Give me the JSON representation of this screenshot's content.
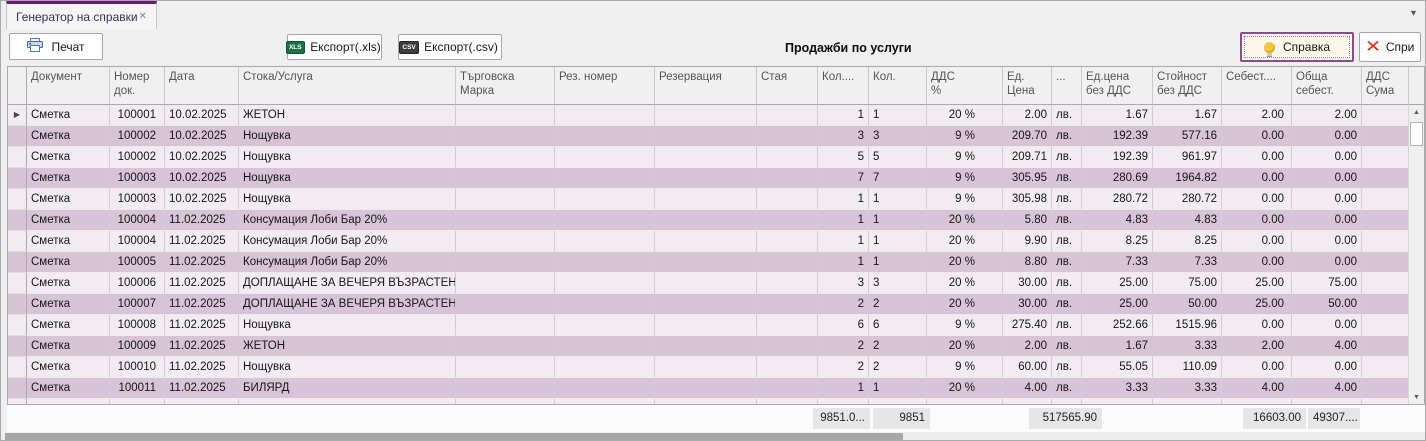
{
  "tab_bar": {
    "active_tab_label": "Генератор на справки",
    "close_glyph": "✕",
    "overflow_glyph": "▾"
  },
  "toolbar": {
    "print_label": "Печат",
    "export_xls_label": "Експорт(.xls)",
    "export_csv_label": "Експорт(.csv)",
    "xls_badge": "XLS",
    "csv_badge": "CSV",
    "report_title": "Продажби по услуги",
    "report_button_label": "Справка",
    "stop_button_label": "Спри",
    "stop_glyph": "✕"
  },
  "grid": {
    "row_indicator_glyph": "▶",
    "headers": {
      "doc": "Документ",
      "num": "Номер\nдок.",
      "date": "Дата",
      "item": "Стока/Услуга",
      "brand": "Търговска\nМарка",
      "res_num": "Рез. номер",
      "reservation": "Резервация",
      "room": "Стая",
      "qty1": "Кол....",
      "qty2": "Кол.",
      "vat_pct": "ДДС\n%",
      "price": "Ед. Цена",
      "curr": "...",
      "price_net": "Ед.цена\nбез ДДС",
      "amount_net": "Стойност\nбез ДДС",
      "cost": "Себест....",
      "total_cost": "Обща\nсебест.",
      "vat_sum": "ДДС Сума"
    },
    "rows": [
      {
        "doc": "Сметка",
        "num": "100001",
        "date": "10.02.2025",
        "item": "ЖЕТОН",
        "brand": "",
        "res_num": "",
        "reservation": "",
        "room": "",
        "qty1": "1",
        "qty2": "1",
        "vat_pct": "20 %",
        "price": "2.00",
        "curr": "лв.",
        "price_net": "1.67",
        "amount_net": "1.67",
        "cost": "2.00",
        "total_cost": "2.00",
        "vat_sum": ""
      },
      {
        "doc": "Сметка",
        "num": "100002",
        "date": "10.02.2025",
        "item": "Нощувка",
        "brand": "",
        "res_num": "",
        "reservation": "",
        "room": "",
        "qty1": "3",
        "qty2": "3",
        "vat_pct": "9 %",
        "price": "209.70",
        "curr": "лв.",
        "price_net": "192.39",
        "amount_net": "577.16",
        "cost": "0.00",
        "total_cost": "0.00",
        "vat_sum": ""
      },
      {
        "doc": "Сметка",
        "num": "100002",
        "date": "10.02.2025",
        "item": "Нощувка",
        "brand": "",
        "res_num": "",
        "reservation": "",
        "room": "",
        "qty1": "5",
        "qty2": "5",
        "vat_pct": "9 %",
        "price": "209.71",
        "curr": "лв.",
        "price_net": "192.39",
        "amount_net": "961.97",
        "cost": "0.00",
        "total_cost": "0.00",
        "vat_sum": ""
      },
      {
        "doc": "Сметка",
        "num": "100003",
        "date": "10.02.2025",
        "item": "Нощувка",
        "brand": "",
        "res_num": "",
        "reservation": "",
        "room": "",
        "qty1": "7",
        "qty2": "7",
        "vat_pct": "9 %",
        "price": "305.95",
        "curr": "лв.",
        "price_net": "280.69",
        "amount_net": "1964.82",
        "cost": "0.00",
        "total_cost": "0.00",
        "vat_sum": ""
      },
      {
        "doc": "Сметка",
        "num": "100003",
        "date": "10.02.2025",
        "item": "Нощувка",
        "brand": "",
        "res_num": "",
        "reservation": "",
        "room": "",
        "qty1": "1",
        "qty2": "1",
        "vat_pct": "9 %",
        "price": "305.98",
        "curr": "лв.",
        "price_net": "280.72",
        "amount_net": "280.72",
        "cost": "0.00",
        "total_cost": "0.00",
        "vat_sum": ""
      },
      {
        "doc": "Сметка",
        "num": "100004",
        "date": "11.02.2025",
        "item": "Консумация Лоби Бар 20%",
        "brand": "",
        "res_num": "",
        "reservation": "",
        "room": "",
        "qty1": "1",
        "qty2": "1",
        "vat_pct": "20 %",
        "price": "5.80",
        "curr": "лв.",
        "price_net": "4.83",
        "amount_net": "4.83",
        "cost": "0.00",
        "total_cost": "0.00",
        "vat_sum": ""
      },
      {
        "doc": "Сметка",
        "num": "100004",
        "date": "11.02.2025",
        "item": "Консумация Лоби Бар 20%",
        "brand": "",
        "res_num": "",
        "reservation": "",
        "room": "",
        "qty1": "1",
        "qty2": "1",
        "vat_pct": "20 %",
        "price": "9.90",
        "curr": "лв.",
        "price_net": "8.25",
        "amount_net": "8.25",
        "cost": "0.00",
        "total_cost": "0.00",
        "vat_sum": ""
      },
      {
        "doc": "Сметка",
        "num": "100005",
        "date": "11.02.2025",
        "item": "Консумация Лоби Бар 20%",
        "brand": "",
        "res_num": "",
        "reservation": "",
        "room": "",
        "qty1": "1",
        "qty2": "1",
        "vat_pct": "20 %",
        "price": "8.80",
        "curr": "лв.",
        "price_net": "7.33",
        "amount_net": "7.33",
        "cost": "0.00",
        "total_cost": "0.00",
        "vat_sum": ""
      },
      {
        "doc": "Сметка",
        "num": "100006",
        "date": "11.02.2025",
        "item": "ДОПЛАЩАНЕ ЗА ВЕЧЕРЯ ВЪЗРАСТЕН",
        "brand": "",
        "res_num": "",
        "reservation": "",
        "room": "",
        "qty1": "3",
        "qty2": "3",
        "vat_pct": "20 %",
        "price": "30.00",
        "curr": "лв.",
        "price_net": "25.00",
        "amount_net": "75.00",
        "cost": "25.00",
        "total_cost": "75.00",
        "vat_sum": ""
      },
      {
        "doc": "Сметка",
        "num": "100007",
        "date": "11.02.2025",
        "item": "ДОПЛАЩАНЕ ЗА ВЕЧЕРЯ ВЪЗРАСТЕН",
        "brand": "",
        "res_num": "",
        "reservation": "",
        "room": "",
        "qty1": "2",
        "qty2": "2",
        "vat_pct": "20 %",
        "price": "30.00",
        "curr": "лв.",
        "price_net": "25.00",
        "amount_net": "50.00",
        "cost": "25.00",
        "total_cost": "50.00",
        "vat_sum": ""
      },
      {
        "doc": "Сметка",
        "num": "100008",
        "date": "11.02.2025",
        "item": "Нощувка",
        "brand": "",
        "res_num": "",
        "reservation": "",
        "room": "",
        "qty1": "6",
        "qty2": "6",
        "vat_pct": "9 %",
        "price": "275.40",
        "curr": "лв.",
        "price_net": "252.66",
        "amount_net": "1515.96",
        "cost": "0.00",
        "total_cost": "0.00",
        "vat_sum": ""
      },
      {
        "doc": "Сметка",
        "num": "100009",
        "date": "11.02.2025",
        "item": "ЖЕТОН",
        "brand": "",
        "res_num": "",
        "reservation": "",
        "room": "",
        "qty1": "2",
        "qty2": "2",
        "vat_pct": "20 %",
        "price": "2.00",
        "curr": "лв.",
        "price_net": "1.67",
        "amount_net": "3.33",
        "cost": "2.00",
        "total_cost": "4.00",
        "vat_sum": ""
      },
      {
        "doc": "Сметка",
        "num": "100010",
        "date": "11.02.2025",
        "item": "Нощувка",
        "brand": "",
        "res_num": "",
        "reservation": "",
        "room": "",
        "qty1": "2",
        "qty2": "2",
        "vat_pct": "9 %",
        "price": "60.00",
        "curr": "лв.",
        "price_net": "55.05",
        "amount_net": "110.09",
        "cost": "0.00",
        "total_cost": "0.00",
        "vat_sum": ""
      },
      {
        "doc": "Сметка",
        "num": "100011",
        "date": "11.02.2025",
        "item": "БИЛЯРД",
        "brand": "",
        "res_num": "",
        "reservation": "",
        "room": "",
        "qty1": "1",
        "qty2": "1",
        "vat_pct": "20 %",
        "price": "4.00",
        "curr": "лв.",
        "price_net": "3.33",
        "amount_net": "3.33",
        "cost": "4.00",
        "total_cost": "4.00",
        "vat_sum": ""
      }
    ],
    "footer": {
      "qty1": "9851.0...",
      "qty2": "9851",
      "amount_net": "517565.90",
      "total_cost": "16603.00",
      "vat_sum": "49307...."
    }
  },
  "scrollbars": {
    "up_glyph": "▲",
    "down_glyph": "▼"
  },
  "colors": {
    "tab_accent": "#6a1b78",
    "report_button_border": "#8e4a8e",
    "row_base": "#f2ecf2",
    "row_alt": "#d7c4d7",
    "header_bg": "#f1f0f1",
    "stop_x_red": "#da3526",
    "bulb_yellow": "#f5c644",
    "xls_green": "#1e7145",
    "csv_dark": "#3d3d3d"
  }
}
